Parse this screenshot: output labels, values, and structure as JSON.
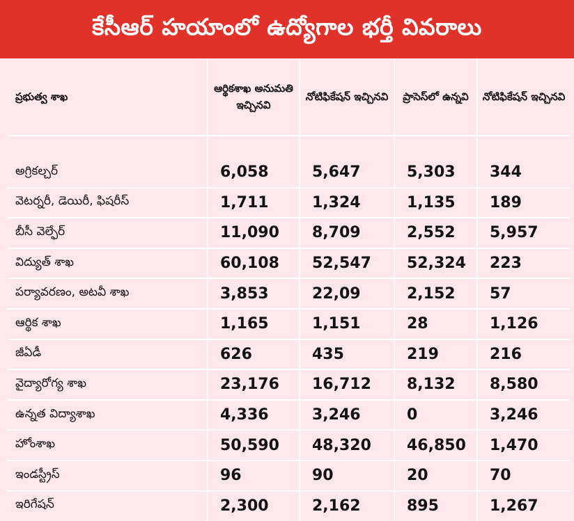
{
  "title": "కేసీఆర్ హయాంలో ఉద్యోగాల భర్తీ వివరాలు",
  "colors": {
    "banner": "#e0322b",
    "row_bg": "#fde7ec",
    "grid": "#ffffff",
    "text": "#141414"
  },
  "table": {
    "headers": [
      "ప్రభుత్వ శాఖ",
      "ఆర్థికశాఖ అనుమతి ఇచ్చినవి",
      "నోటిఫికేషన్ ఇచ్చినవి",
      "ప్రాసెస్‌లో ఉన్నవి",
      "నోటిఫికేషన్ ఇచ్చినవి"
    ],
    "rows": [
      [
        "అగ్రికల్చర్",
        "6,058",
        "5,647",
        "5,303",
        "344"
      ],
      [
        "వెటర్నరీ, డెయిరీ, ఫిషరీస్",
        "1,711",
        "1,324",
        "1,135",
        "189"
      ],
      [
        "బీసీ వెల్ఫేర్",
        "11,090",
        "8,709",
        "2,552",
        "5,957"
      ],
      [
        "విద్యుత్ శాఖ",
        "60,108",
        "52,547",
        "52,324",
        "223"
      ],
      [
        "పర్యావరణం, అటవీ శాఖ",
        "3,853",
        "22,09",
        "2,152",
        "57"
      ],
      [
        "ఆర్థిక శాఖ",
        "1,165",
        "1,151",
        "28",
        "1,126"
      ],
      [
        "జీఏడీ",
        "626",
        "435",
        "219",
        "216"
      ],
      [
        "వైద్యారోగ్య శాఖ",
        "23,176",
        "16,712",
        "8,132",
        "8,580"
      ],
      [
        "ఉన్నత విద్యాశాఖ",
        "4,336",
        "3,246",
        "0",
        "3,246"
      ],
      [
        "హోంశాఖ",
        "50,590",
        "48,320",
        "46,850",
        "1,470"
      ],
      [
        "ఇండస్ట్రీస్",
        "96",
        "90",
        "20",
        "70"
      ],
      [
        "ఇరిగేషన్",
        "2,300",
        "2,162",
        "895",
        "1,267"
      ]
    ]
  }
}
